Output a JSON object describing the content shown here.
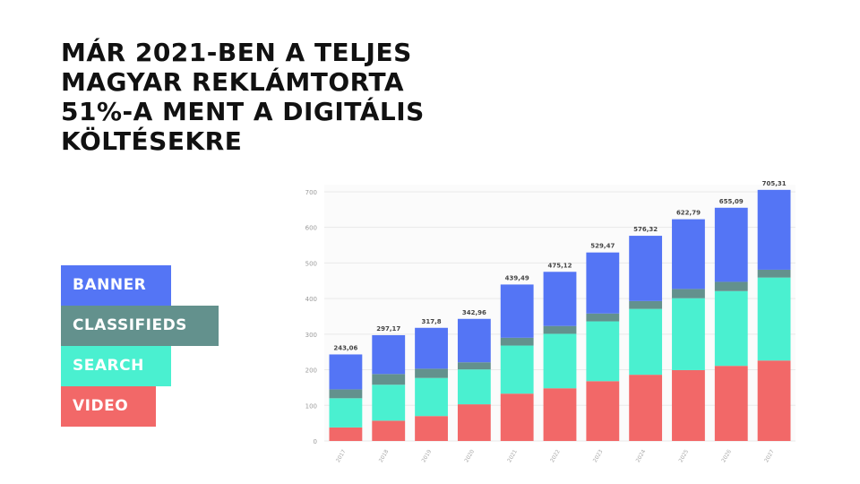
{
  "headline": "MÁR 2021-BEN A TELJES\nMAGYAR REKLÁMTORTA\n51%-A MENT A DIGITÁLIS\nKÖLTÉSEKRE",
  "legend": [
    {
      "label": "BANNER",
      "color": "#5475F5"
    },
    {
      "label": "CLASSIFIEDS",
      "color": "#63918D"
    },
    {
      "label": "SEARCH",
      "color": "#4AF0D0"
    },
    {
      "label": "VIDEO",
      "color": "#F26868"
    }
  ],
  "chart_data": {
    "type": "bar",
    "stacked": true,
    "categories": [
      "2017",
      "2018",
      "2019",
      "2020",
      "2021",
      "2022",
      "2023",
      "2024",
      "2025",
      "2026",
      "2027"
    ],
    "series": [
      {
        "name": "VIDEO",
        "color": "#F26868",
        "values": [
          38,
          57,
          70,
          103,
          133,
          148,
          168,
          186,
          199,
          211,
          226
        ]
      },
      {
        "name": "SEARCH",
        "color": "#4AF0D0",
        "values": [
          82,
          101,
          107,
          98,
          135,
          153,
          168,
          185,
          202,
          210,
          233
        ]
      },
      {
        "name": "CLASSIFIEDS",
        "color": "#63918D",
        "values": [
          25,
          30,
          26,
          20,
          22,
          22,
          22,
          22,
          26,
          26,
          22
        ]
      },
      {
        "name": "BANNER",
        "color": "#5475F5",
        "values": [
          98.06,
          109.17,
          114.8,
          121.96,
          149.49,
          152.12,
          171.47,
          183.32,
          195.79,
          208.09,
          224.31
        ]
      }
    ],
    "totals": [
      "243,06",
      "297,17",
      "317,8",
      "342,96",
      "439,49",
      "475,12",
      "529,47",
      "576,32",
      "622,79",
      "655,09",
      "705,31"
    ],
    "yticks": [
      "0",
      "100",
      "200",
      "300",
      "400",
      "500",
      "600",
      "700"
    ],
    "ylim": [
      0,
      720
    ],
    "grid": true,
    "title": "",
    "xlabel": "",
    "ylabel": ""
  }
}
